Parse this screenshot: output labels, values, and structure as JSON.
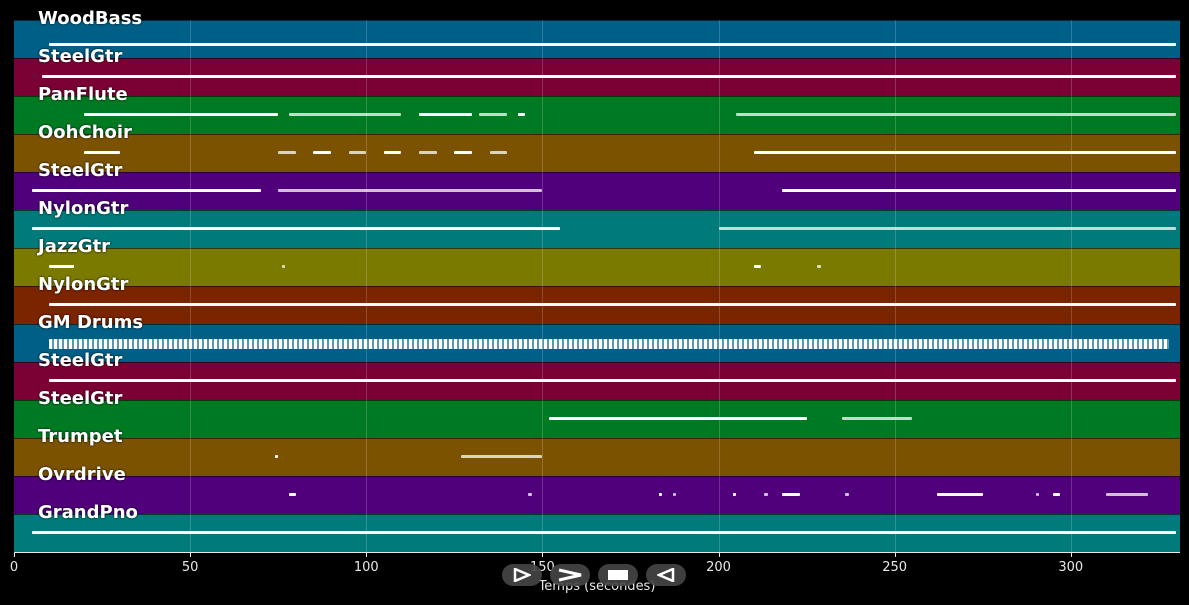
{
  "chart_data": {
    "type": "piano-roll",
    "xlabel": "Temps (secondes)",
    "xlim": [
      0,
      331
    ],
    "x_ticks": [
      0,
      50,
      100,
      150,
      200,
      250,
      300
    ],
    "tracks": [
      {
        "name": "WoodBass",
        "color": "#005f86",
        "segments": [
          [
            10,
            330
          ]
        ]
      },
      {
        "name": "SteelGtr",
        "color": "#7b0034",
        "segments": [
          [
            8,
            330
          ]
        ]
      },
      {
        "name": "PanFlute",
        "color": "#007a22",
        "segments": [
          [
            20,
            75
          ],
          [
            78,
            110
          ],
          [
            115,
            130
          ],
          [
            132,
            140
          ],
          [
            143,
            145
          ],
          [
            205,
            330
          ]
        ]
      },
      {
        "name": "OohChoir",
        "color": "#7a5200",
        "segments": [
          [
            20,
            30
          ],
          [
            75,
            80
          ],
          [
            85,
            90
          ],
          [
            95,
            100
          ],
          [
            105,
            110
          ],
          [
            115,
            120
          ],
          [
            125,
            130
          ],
          [
            135,
            140
          ],
          [
            210,
            330
          ]
        ]
      },
      {
        "name": "SteelGtr",
        "color": "#4f007a",
        "segments": [
          [
            5,
            70
          ],
          [
            75,
            150
          ],
          [
            218,
            330
          ]
        ]
      },
      {
        "name": "NylonGtr",
        "color": "#007a7a",
        "segments": [
          [
            5,
            155
          ],
          [
            200,
            330
          ]
        ]
      },
      {
        "name": "JazzGtr",
        "color": "#7a7a00",
        "segments": [
          [
            10,
            17
          ],
          [
            76,
            77
          ],
          [
            210,
            212
          ],
          [
            228,
            229
          ]
        ]
      },
      {
        "name": "NylonGtr",
        "color": "#7a2400",
        "segments": [
          [
            10,
            330
          ]
        ]
      },
      {
        "name": "GM Drums",
        "color": "#005f86",
        "segments": [
          [
            10,
            328
          ]
        ]
      },
      {
        "name": "SteelGtr",
        "color": "#7b0034",
        "segments": [
          [
            10,
            330
          ]
        ]
      },
      {
        "name": "SteelGtr",
        "color": "#007a22",
        "segments": [
          [
            152,
            225
          ],
          [
            235,
            255
          ]
        ]
      },
      {
        "name": "Trumpet",
        "color": "#7a5200",
        "segments": [
          [
            74,
            75
          ],
          [
            127,
            150
          ]
        ]
      },
      {
        "name": "Ovrdrive",
        "color": "#4f007a",
        "segments": [
          [
            78,
            80
          ],
          [
            146,
            147
          ],
          [
            183,
            184
          ],
          [
            187,
            188
          ],
          [
            204,
            205
          ],
          [
            213,
            214
          ],
          [
            218,
            223
          ],
          [
            236,
            237
          ],
          [
            262,
            275
          ],
          [
            290,
            291
          ],
          [
            295,
            297
          ],
          [
            310,
            322
          ]
        ]
      },
      {
        "name": "GrandPno",
        "color": "#007a7a",
        "segments": [
          [
            5,
            330
          ]
        ]
      }
    ]
  },
  "controls": {
    "play_back_icon": "play-triangle",
    "play_icon": "play",
    "stop_icon": "stop",
    "rewind_icon": "rewind"
  }
}
